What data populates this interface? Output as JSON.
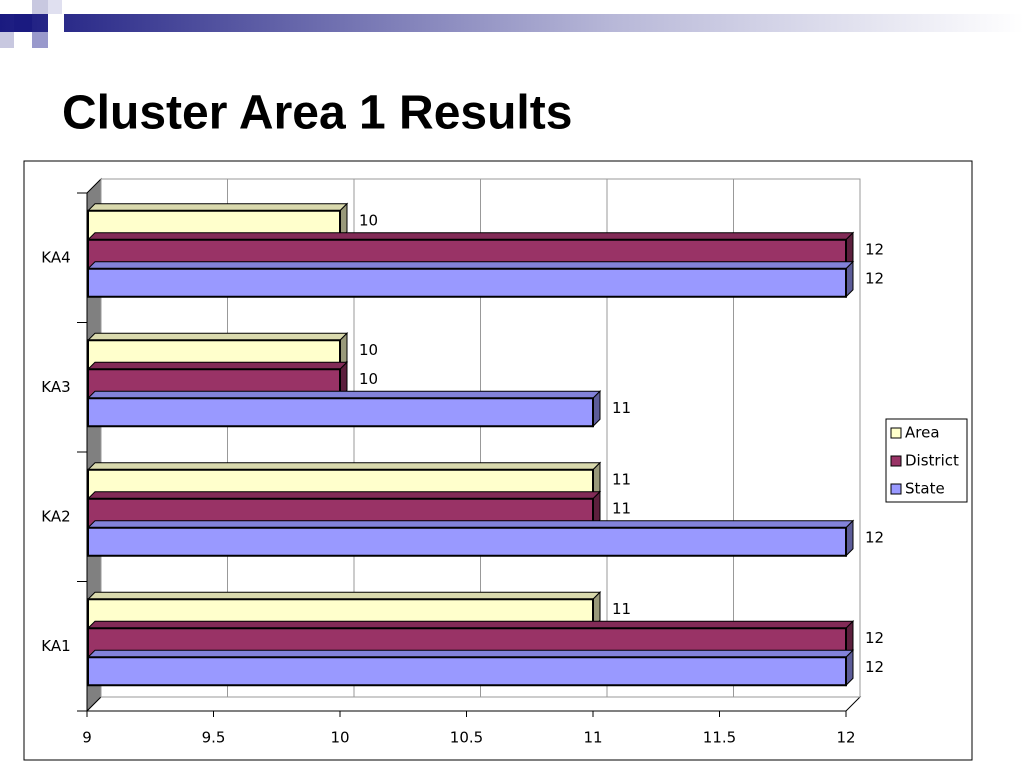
{
  "chart_data": {
    "type": "bar",
    "orientation": "horizontal",
    "title": "Cluster Area 1 Results",
    "categories": [
      "KA1",
      "KA2",
      "KA3",
      "KA4"
    ],
    "series": [
      {
        "name": "Area",
        "color": "#ffffcc",
        "values": [
          11,
          11,
          10,
          10
        ]
      },
      {
        "name": "District",
        "color": "#993366",
        "values": [
          12,
          11,
          10,
          12
        ]
      },
      {
        "name": "State",
        "color": "#9999ff",
        "values": [
          12,
          12,
          11,
          12
        ]
      }
    ],
    "xlim": [
      9,
      12
    ],
    "xticks": [
      9,
      9.5,
      10,
      10.5,
      11,
      11.5,
      12
    ],
    "grid": true,
    "legend": "right"
  }
}
